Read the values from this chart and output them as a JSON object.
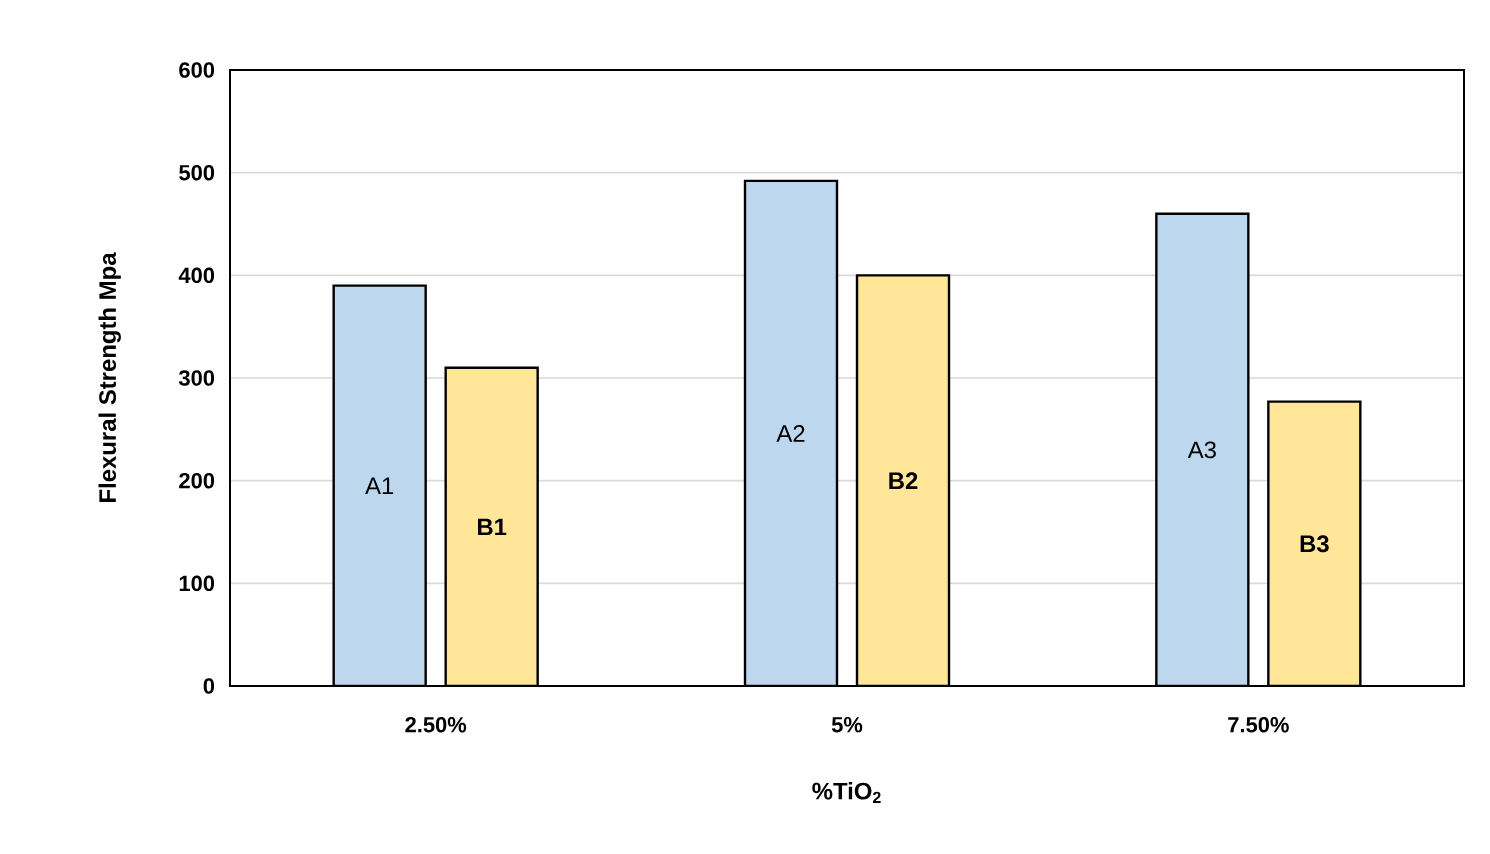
{
  "chart_data": {
    "type": "bar",
    "xlabel": "%TiO$_{2}$",
    "ylabel": "Flexural Strength Mpa",
    "categories": [
      "2.50%",
      "5%",
      "7.50%"
    ],
    "series": [
      {
        "color": "#bdd7ee",
        "values": [
          390,
          492,
          460
        ],
        "value_labels": [
          "A1",
          "A2",
          "A3"
        ]
      },
      {
        "color": "#ffe699",
        "values": [
          310,
          400,
          277
        ],
        "value_labels": [
          "**B1**",
          "**B2**",
          "**B3**"
        ]
      }
    ],
    "ylim": [
      0,
      600
    ],
    "yticks": [
      0,
      100,
      200,
      300,
      400,
      500,
      600
    ],
    "grid": "y"
  }
}
